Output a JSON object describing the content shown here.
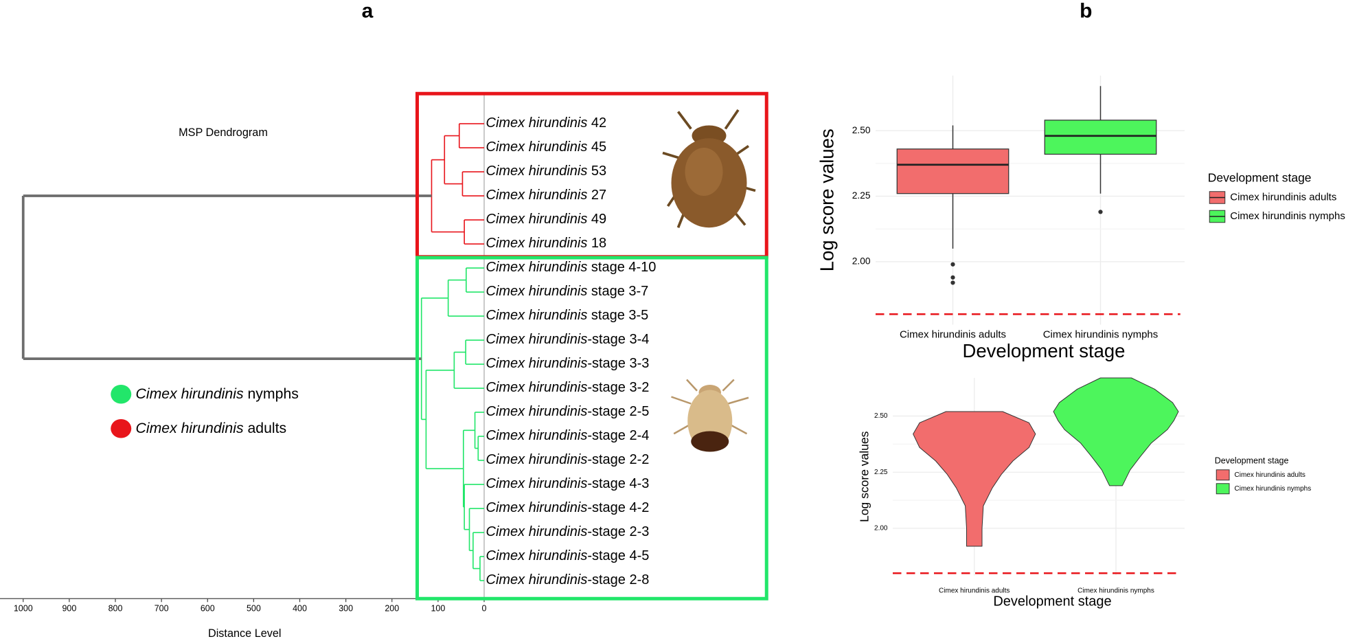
{
  "panel_labels": [
    "a",
    "b"
  ],
  "dendrogram": {
    "title": "MSP Dendrogram",
    "xlabel": "Distance Level",
    "xlim": [
      1000,
      0
    ],
    "xticks": [
      1000,
      900,
      800,
      700,
      600,
      500,
      400,
      300,
      200,
      100,
      0
    ],
    "leaves": [
      {
        "species": "Cimex hirundinis",
        "suffix": " 42"
      },
      {
        "species": "Cimex hirundinis",
        "suffix": " 45"
      },
      {
        "species": "Cimex hirundinis",
        "suffix": " 53"
      },
      {
        "species": "Cimex hirundinis",
        "suffix": " 27"
      },
      {
        "species": "Cimex hirundinis",
        "suffix": " 49"
      },
      {
        "species": "Cimex hirundinis",
        "suffix": " 18"
      },
      {
        "species": "Cimex hirundinis",
        "suffix": " stage 4-10"
      },
      {
        "species": "Cimex hirundinis",
        "suffix": " stage 3-7"
      },
      {
        "species": "Cimex hirundinis",
        "suffix": " stage 3-5"
      },
      {
        "species": "Cimex hirundinis",
        "suffix": "-stage 3-4"
      },
      {
        "species": "Cimex hirundinis",
        "suffix": "-stage 3-3"
      },
      {
        "species": "Cimex hirundinis",
        "suffix": "-stage 3-2"
      },
      {
        "species": "Cimex hirundinis",
        "suffix": "-stage 2-5"
      },
      {
        "species": "Cimex hirundinis",
        "suffix": "-stage 2-4"
      },
      {
        "species": "Cimex hirundinis",
        "suffix": "-stage 2-2"
      },
      {
        "species": "Cimex hirundinis",
        "suffix": "-stage 4-3"
      },
      {
        "species": "Cimex hirundinis",
        "suffix": "-stage 4-2"
      },
      {
        "species": "Cimex hirundinis",
        "suffix": "-stage 2-3"
      },
      {
        "species": "Cimex hirundinis",
        "suffix": "-stage 4-5"
      },
      {
        "species": "Cimex hirundinis",
        "suffix": "-stage 2-8"
      }
    ],
    "tree": {
      "height": 1000,
      "color": "#6d6d6d",
      "children": [
        {
          "height": 114,
          "color": "#e8151b",
          "children": [
            {
              "height": 86,
              "children": [
                {
                  "height": 54,
                  "children": [
                    0,
                    1
                  ]
                },
                {
                  "height": 47,
                  "children": [
                    2,
                    3
                  ]
                }
              ]
            },
            {
              "height": 43,
              "children": [
                4,
                5
              ]
            }
          ]
        },
        {
          "height": 136,
          "color": "#22e66a",
          "children": [
            {
              "height": 78,
              "children": [
                {
                  "height": 39,
                  "children": [
                    6,
                    7
                  ]
                },
                8
              ]
            },
            {
              "height": 126,
              "children": [
                {
                  "height": 65,
                  "children": [
                    {
                      "height": 40,
                      "children": [
                        9,
                        10
                      ]
                    },
                    11
                  ]
                },
                {
                  "height": 45,
                  "children": [
                    {
                      "height": 20,
                      "children": [
                        12,
                        {
                          "height": 13,
                          "children": [
                            13,
                            14
                          ]
                        }
                      ]
                    },
                    {
                      "height": 43,
                      "children": [
                        15,
                        {
                          "height": 32,
                          "children": [
                            16,
                            {
                              "height": 24,
                              "children": [
                                17,
                                {
                                  "height": 9,
                                  "children": [
                                    18,
                                    19
                                  ]
                                }
                              ]
                            }
                          ]
                        }
                      ]
                    }
                  ]
                }
              ]
            }
          ]
        }
      ]
    },
    "legend": [
      {
        "species": "Cimex hirundinis",
        "suffix": " nymphs",
        "color": "#22e66a"
      },
      {
        "species": "Cimex hirundinis",
        "suffix": " adults",
        "color": "#e8151b"
      }
    ]
  },
  "chart_data": [
    {
      "type": "box",
      "ylabel": "Log score values",
      "xlabel": "Development stage",
      "legend_title": "Development stage",
      "categories": [
        "Cimex hirundinis adults",
        "Cimex hirundinis nymphs"
      ],
      "ylim": [
        1.76,
        2.71
      ],
      "yticks": [
        {
          "value": 2,
          "label": "2.00"
        },
        {
          "value": 2.25,
          "label": "2.25"
        },
        {
          "value": 2.5,
          "label": "2.50"
        }
      ],
      "grid": true,
      "threshold": 1.8,
      "series": [
        {
          "name": "Cimex hirundinis adults",
          "color": "#f26d6d",
          "whisker_low": 2.05,
          "q1": 2.26,
          "median": 2.37,
          "q3": 2.43,
          "whisker_high": 2.52,
          "outliers": [
            1.99,
            1.94,
            1.92
          ]
        },
        {
          "name": "Cimex hirundinis nymphs",
          "color": "#4df55c",
          "whisker_low": 2.26,
          "q1": 2.41,
          "median": 2.48,
          "q3": 2.54,
          "whisker_high": 2.67,
          "outliers": [
            2.19
          ]
        }
      ]
    },
    {
      "type": "violin",
      "ylabel": "Log score values",
      "xlabel": "Development stage",
      "legend_title": "Development stage",
      "categories": [
        "Cimex hirundinis adults",
        "Cimex hirundinis nymphs"
      ],
      "ylim": [
        1.79,
        2.67
      ],
      "yticks": [
        {
          "value": 2,
          "label": "2.00"
        },
        {
          "value": 2.25,
          "label": "2.25"
        },
        {
          "value": 2.5,
          "label": "2.50"
        }
      ],
      "grid": true,
      "threshold": 1.8,
      "series": [
        {
          "name": "Cimex hirundinis adults",
          "color": "#f26d6d",
          "y": [
            2.52,
            2.47,
            2.42,
            2.36,
            2.3,
            2.24,
            2.18,
            2.1,
            2.0,
            1.92
          ],
          "density": [
            0.44,
            0.85,
            0.95,
            0.85,
            0.6,
            0.42,
            0.28,
            0.14,
            0.12,
            0.12
          ]
        },
        {
          "name": "Cimex hirundinis nymphs",
          "color": "#4df55c",
          "y": [
            2.67,
            2.62,
            2.56,
            2.52,
            2.48,
            2.44,
            2.38,
            2.32,
            2.26,
            2.19
          ],
          "density": [
            0.24,
            0.6,
            0.88,
            0.97,
            0.9,
            0.8,
            0.55,
            0.38,
            0.22,
            0.1
          ]
        }
      ]
    }
  ]
}
